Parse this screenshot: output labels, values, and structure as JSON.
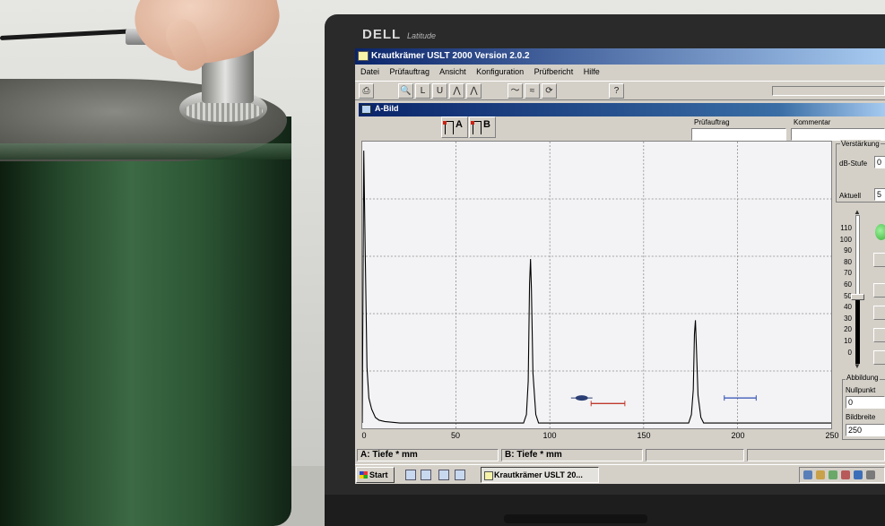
{
  "laptop": {
    "brand": "DELL",
    "model": "Latitude"
  },
  "app": {
    "title": "Krautkrämer USLT 2000  Version 2.0.2",
    "menu": [
      "Datei",
      "Prüfauftrag",
      "Ansicht",
      "Konfiguration",
      "Prüfbericht",
      "Hilfe"
    ],
    "toolbar_icons": [
      "printer-icon",
      "zoom-icon",
      "gate-l-icon",
      "gate-u-icon",
      "peak-icon",
      "trace-icon",
      "waveform-icon",
      "signal-icon",
      "pointer-icon",
      "help-icon"
    ],
    "toolbar_glyphs": [
      "⎙",
      "🔍",
      "L",
      "U",
      "⋀",
      "⋀",
      "〜",
      "≈",
      "⟳",
      "?"
    ]
  },
  "window": {
    "title": "A-Bild",
    "gate_a": "A",
    "gate_b": "B",
    "pruefauftrag_label": "Prüfauftrag",
    "pruefauftrag_value": "",
    "kommentar_label": "Kommentar",
    "kommentar_value": ""
  },
  "verstaerkung": {
    "group_label": "Verstärkung",
    "db_stufe_label": "dB-Stufe",
    "db_stufe_value": "0",
    "aktuell_label": "Aktuell",
    "aktuell_value": "5",
    "scale": [
      "110",
      "100",
      "90",
      "80",
      "70",
      "60",
      "50",
      "40",
      "30",
      "20",
      "10",
      "0"
    ],
    "slider_value": 52,
    "slider_max": 115
  },
  "abbildung": {
    "group_label": "Abbildung",
    "nullpunkt_label": "Nullpunkt",
    "nullpunkt_value": "0",
    "bildbreite_label": "Bildbreite",
    "bildbreite_value": "250"
  },
  "status": {
    "a_tiefe": "A: Tiefe * mm",
    "b_tiefe": "B: Tiefe * mm"
  },
  "taskbar": {
    "start": "Start",
    "task": "Krautkrämer USLT 20..."
  },
  "chart_data": {
    "type": "line",
    "x_ticks": [
      "0",
      "50",
      "100",
      "150",
      "200",
      "250"
    ],
    "xlim": [
      0,
      250
    ],
    "ylim": [
      0,
      100
    ],
    "grid": true,
    "series": [
      {
        "points": [
          [
            0,
            0
          ],
          [
            0.8,
            98
          ],
          [
            1.6,
            60
          ],
          [
            2.5,
            20
          ],
          [
            3.5,
            9
          ],
          [
            5,
            5
          ],
          [
            7,
            2
          ],
          [
            9,
            1
          ],
          [
            12,
            0.5
          ],
          [
            20,
            0
          ],
          [
            86,
            0
          ],
          [
            87.5,
            3
          ],
          [
            88.5,
            15
          ],
          [
            89.2,
            50
          ],
          [
            89.7,
            59
          ],
          [
            90.2,
            48
          ],
          [
            91,
            18
          ],
          [
            92.5,
            3
          ],
          [
            94,
            0
          ],
          [
            174,
            0
          ],
          [
            175.5,
            3
          ],
          [
            176.5,
            12
          ],
          [
            177.1,
            32
          ],
          [
            177.6,
            37
          ],
          [
            178.1,
            28
          ],
          [
            179,
            10
          ],
          [
            180.5,
            2
          ],
          [
            182,
            0
          ],
          [
            250,
            0
          ]
        ]
      }
    ],
    "gate_a": {
      "start": 122,
      "end": 140,
      "level": 7,
      "color": "#c0392b"
    },
    "gate_b": {
      "start": 193,
      "end": 210,
      "level": 9,
      "color": "#2e4fb5"
    },
    "echo_marker": {
      "x": 117,
      "y": 9
    }
  }
}
